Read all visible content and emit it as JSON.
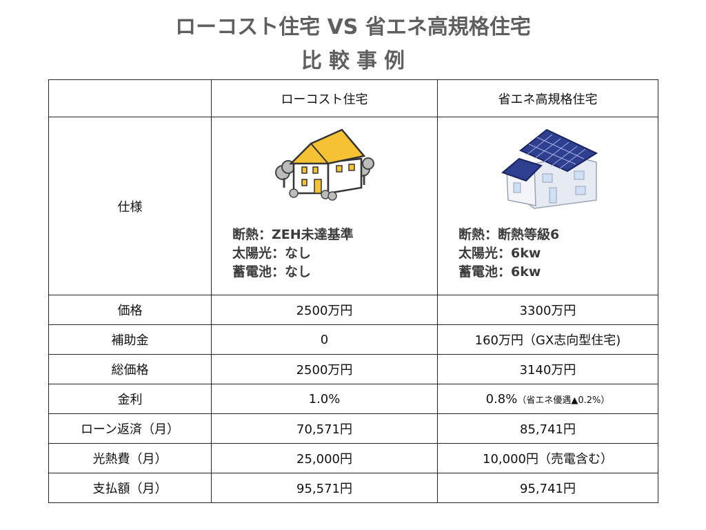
{
  "title": {
    "line1": "ローコスト住宅 VS 省エネ高規格住宅",
    "line2": "比較事例"
  },
  "table": {
    "header": {
      "corner": "",
      "col1": "ローコスト住宅",
      "col2": "省エネ高規格住宅"
    },
    "spec": {
      "label": "仕様",
      "col1": [
        "断熱：ZEH未達基準",
        "太陽光：なし",
        "蓄電池：なし"
      ],
      "col2": [
        "断熱：断熱等級6",
        "太陽光：6kw",
        "蓄電池：6kw"
      ]
    },
    "rows": [
      {
        "label": "価格",
        "col1": "2500万円",
        "col2": "3300万円",
        "col2_note": ""
      },
      {
        "label": "補助金",
        "col1": "0",
        "col2": "160万円（GX志向型住宅)",
        "col2_note": ""
      },
      {
        "label": "総価格",
        "col1": "2500万円",
        "col2": "3140万円",
        "col2_note": ""
      },
      {
        "label": "金利",
        "col1": "1.0%",
        "col2": "0.8%",
        "col2_note": "（省エネ優遇▲0.2%）"
      },
      {
        "label": "ローン返済（月）",
        "col1": "70,571円",
        "col2": "85,741円",
        "col2_note": ""
      },
      {
        "label": "光熱費（月）",
        "col1": "25,000円",
        "col2": "10,000円（売電含む）",
        "col2_note": ""
      },
      {
        "label": "支払額（月）",
        "col1": "95,571円",
        "col2": "95,741円",
        "col2_note": ""
      }
    ]
  },
  "images": {
    "lowcost": "lowcost-house-illustration",
    "eco": "solar-house-illustration"
  },
  "colors": {
    "title": "#5f5f5f",
    "roof_yellow": "#f5c233",
    "solar_blue": "#2f3f8f",
    "border": "#222222"
  }
}
